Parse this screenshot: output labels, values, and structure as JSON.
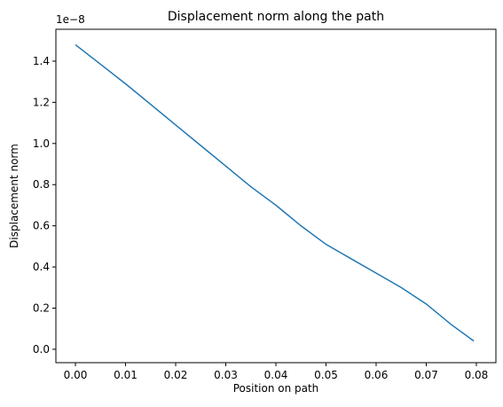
{
  "chart_data": {
    "type": "line",
    "title": "Displacement norm along the path",
    "x_label": "Position on path",
    "y_label": "Displacement norm",
    "y_offset_label": "1e−8",
    "series": [
      {
        "name": "Displacement norm",
        "color": "#1f77b4",
        "x": [
          0,
          0.005,
          0.01,
          0.015,
          0.02,
          0.025,
          0.03,
          0.035,
          0.04,
          0.0405,
          0.045,
          0.05,
          0.055,
          0.06,
          0.065,
          0.07,
          0.075,
          0.0795
        ],
        "values": [
          1.48,
          1.385,
          1.29,
          1.19,
          1.09,
          0.99,
          0.89,
          0.79,
          0.7,
          0.69,
          0.6,
          0.51,
          0.44,
          0.37,
          0.3,
          0.22,
          0.12,
          0.04
        ]
      }
    ],
    "xlim": [
      -0.0039,
      0.0839
    ],
    "ylim": [
      -0.065,
      1.555
    ],
    "xticks": [
      {
        "value": 0,
        "label": "0.00"
      },
      {
        "value": 0.01,
        "label": "0.01"
      },
      {
        "value": 0.02,
        "label": "0.02"
      },
      {
        "value": 0.03,
        "label": "0.03"
      },
      {
        "value": 0.04,
        "label": "0.04"
      },
      {
        "value": 0.05,
        "label": "0.05"
      },
      {
        "value": 0.06,
        "label": "0.06"
      },
      {
        "value": 0.07,
        "label": "0.07"
      },
      {
        "value": 0.08,
        "label": "0.08"
      }
    ],
    "yticks": [
      {
        "value": 0,
        "label": "0.0"
      },
      {
        "value": 0.2,
        "label": "0.2"
      },
      {
        "value": 0.4,
        "label": "0.4"
      },
      {
        "value": 0.6,
        "label": "0.6"
      },
      {
        "value": 0.8,
        "label": "0.8"
      },
      {
        "value": 1.0,
        "label": "1.0"
      },
      {
        "value": 1.2,
        "label": "1.2"
      },
      {
        "value": 1.4,
        "label": "1.4"
      }
    ],
    "grid": false
  }
}
